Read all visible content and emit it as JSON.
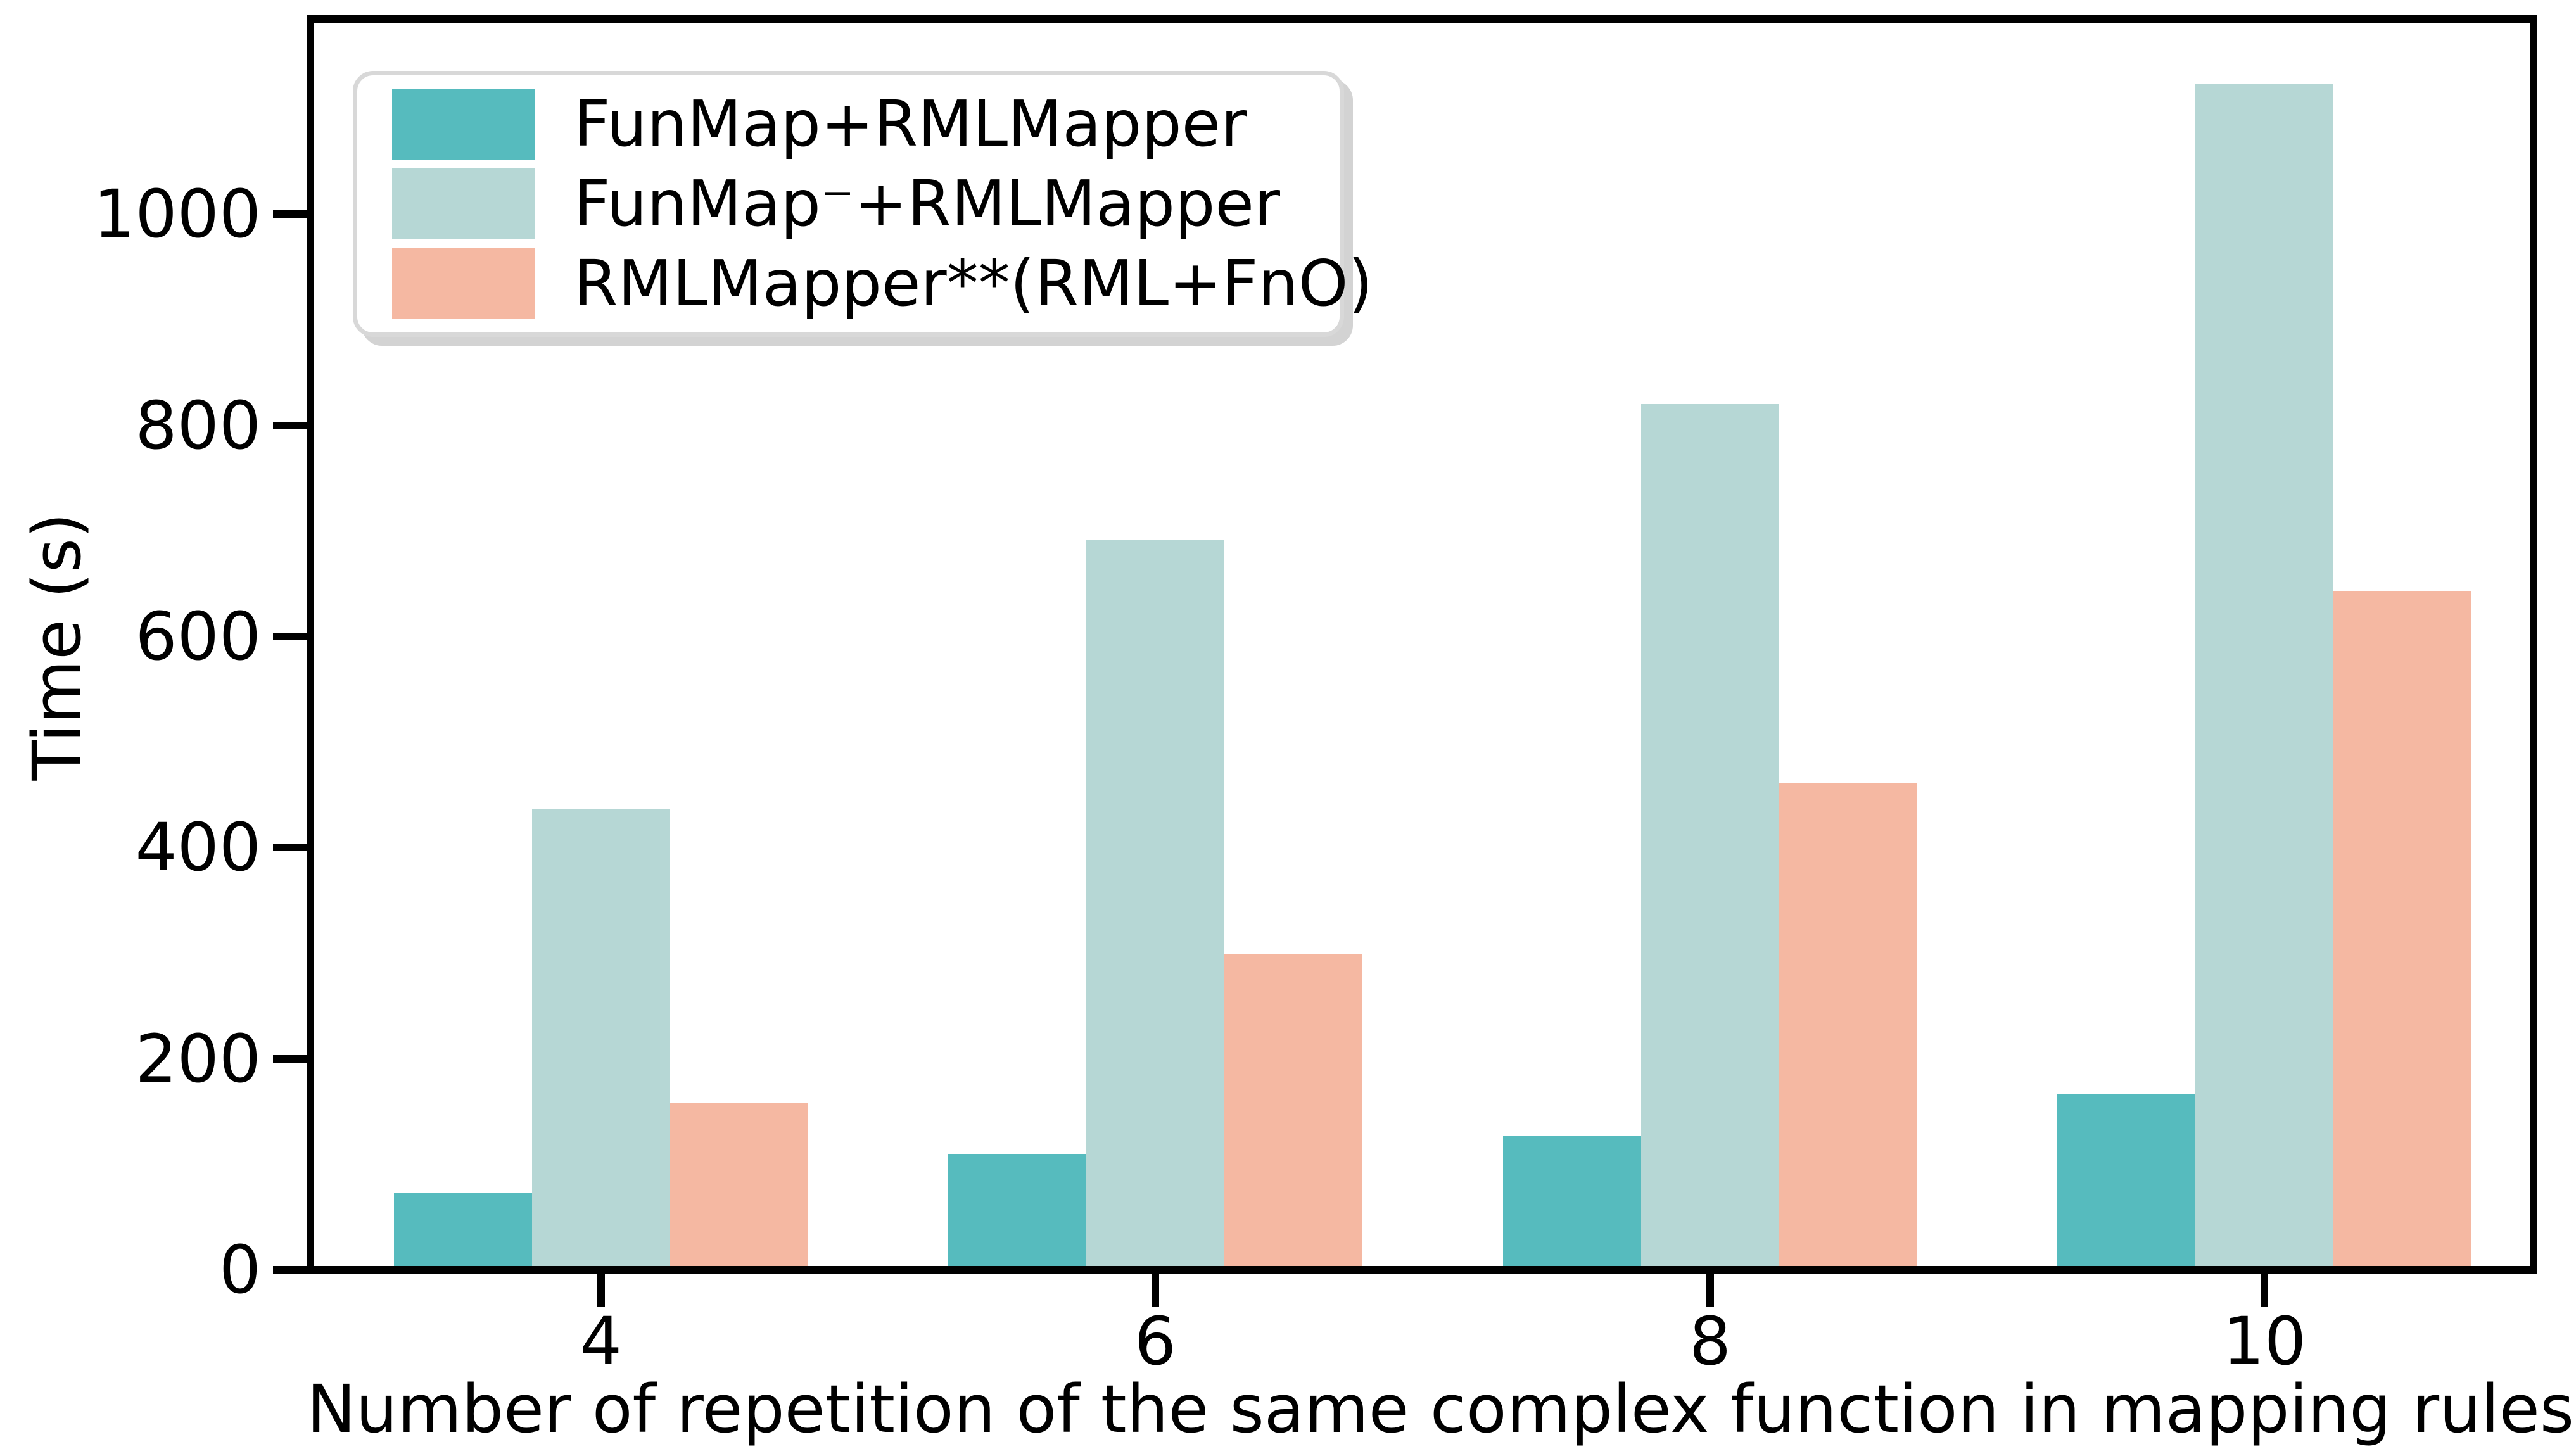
{
  "chart_data": {
    "type": "bar",
    "title": "",
    "xlabel": "Number of repetition of the same complex function in mapping rules",
    "ylabel": "Time (s)",
    "categories": [
      "4",
      "6",
      "8",
      "10"
    ],
    "series": [
      {
        "name": "FunMap+RMLMapper",
        "color": "#56bbbe",
        "values": [
          73,
          110,
          127,
          166
        ]
      },
      {
        "name": "FunMap⁻+RMLMapper",
        "color": "#b6d7d5",
        "values": [
          437,
          691,
          820,
          1124
        ]
      },
      {
        "name": "RMLMapper**(RML+FnO)",
        "color": "#f5b8a2",
        "values": [
          158,
          299,
          461,
          643
        ]
      }
    ],
    "yticks": [
      0,
      200,
      400,
      600,
      800,
      1000
    ],
    "ylim": [
      0,
      1185
    ],
    "grid": false,
    "legend_position": "upper left",
    "axis_color": "#000000",
    "background_color": "#ffffff"
  }
}
